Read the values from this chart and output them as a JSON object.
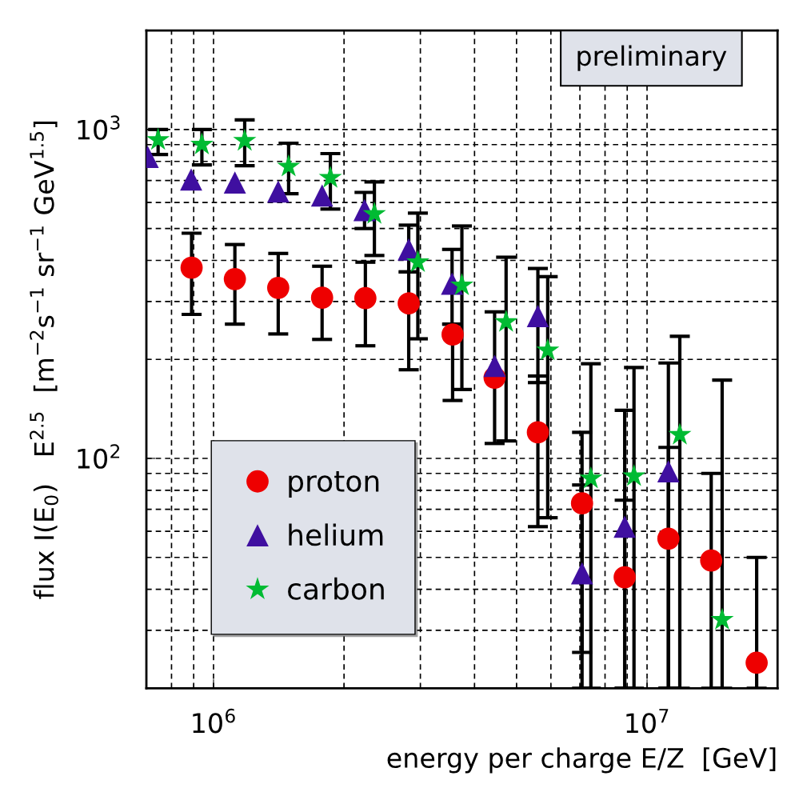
{
  "chart_data": {
    "type": "scatter",
    "xlabel": "energy per charge E/Z  [GeV]",
    "ylabel": "flux I(E$_{0}$)   E$^{2.5}$  [m$^{−2}$s$^{−1}$ sr$^{−1}$ GeV$^{1.5}$]",
    "annotations": [
      "preliminary"
    ],
    "log": "xy",
    "grid": true,
    "legend": "bottom left",
    "xlim": [
      700000,
      20000000
    ],
    "ylim": [
      20,
      2000
    ],
    "xticks": [
      {
        "value": 1000000,
        "label": "10$^{6}$"
      },
      {
        "value": 10000000,
        "label": "10$^{7}$"
      }
    ],
    "yticks": [
      {
        "value": 100,
        "label": "10$^{2}$"
      },
      {
        "value": 1000,
        "label": "10$^{3}$"
      }
    ],
    "series": [
      {
        "name": "proton",
        "color": "#ee0000",
        "marker": "circle",
        "x": [
          890000,
          1120000,
          1410000,
          1780000,
          2240000,
          2820000,
          3560000,
          4450000,
          5600000,
          7080000,
          8880000,
          11200000,
          14060000,
          17900000
        ],
        "values": [
          380,
          351,
          330,
          308,
          307,
          296,
          238,
          176,
          120,
          73,
          43.5,
          57,
          48.9,
          23.9
        ],
        "errors": [
          [
            274,
            484
          ],
          [
            256,
            447
          ],
          [
            239,
            420
          ],
          [
            230,
            384
          ],
          [
            220,
            395
          ],
          [
            186,
            369
          ],
          [
            150,
            256
          ],
          [
            111,
            279
          ],
          [
            62,
            178
          ],
          [
            20,
            83
          ],
          [
            20,
            74.6
          ],
          [
            20,
            108
          ],
          [
            20,
            90
          ],
          [
            20,
            50
          ]
        ]
      },
      {
        "name": "helium",
        "color": "#3f0fa0",
        "marker": "triangle",
        "x": [
          705000,
          888000,
          1120000,
          1410000,
          1780000,
          2230000,
          2820000,
          3550000,
          4450000,
          5600000,
          7080000,
          8880000,
          11200000
        ],
        "values": [
          826,
          705,
          690,
          648,
          630,
          569,
          432,
          340,
          191,
          271,
          44.7,
          62,
          91.4
        ],
        "errors": [
          null,
          null,
          null,
          null,
          null,
          [
            500,
            644
          ],
          [
            369,
            512
          ],
          [
            256,
            432
          ],
          null,
          [
            170,
            378
          ],
          [
            25.7,
            120
          ],
          [
            20,
            140
          ],
          [
            20,
            195
          ]
        ]
      },
      {
        "name": "carbon",
        "color": "#00bb33",
        "marker": "star",
        "x": [
          745000,
          940000,
          1180000,
          1490000,
          1860000,
          2350000,
          2960000,
          3740000,
          4730000,
          5900000,
          7420000,
          9330000,
          11900000,
          14900000
        ],
        "values": [
          930,
          900,
          924,
          772,
          713,
          554,
          395,
          336,
          260,
          213,
          86.9,
          88.3,
          118,
          32.3
        ],
        "errors": [
          [
            840,
            1000
          ],
          [
            781,
            1000
          ],
          [
            776,
            1070
          ],
          [
            638,
            909
          ],
          [
            573,
            845
          ],
          [
            414,
            693
          ],
          [
            231,
            557
          ],
          [
            162,
            509
          ],
          [
            113,
            409
          ],
          [
            66,
            357
          ],
          [
            20,
            194
          ],
          [
            20,
            189
          ],
          [
            20,
            235
          ],
          [
            20,
            173
          ]
        ]
      }
    ]
  }
}
